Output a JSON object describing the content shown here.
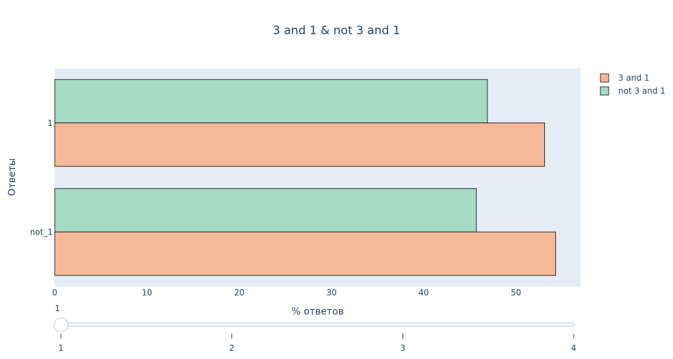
{
  "chart_data": {
    "type": "bar",
    "orientation": "horizontal",
    "title": "3 and 1 & not 3 and 1",
    "xlabel": "% ответов",
    "ylabel": "Ответы",
    "categories": [
      "1",
      "not_1"
    ],
    "series": [
      {
        "name": "3 and 1",
        "values": [
          53.1,
          54.3
        ],
        "color": "#f4b997"
      },
      {
        "name": "not 3 and 1",
        "values": [
          46.9,
          45.7
        ],
        "color": "#a5dac4"
      }
    ],
    "xlim": [
      0,
      57
    ],
    "xticks": [
      0,
      10,
      20,
      30,
      40,
      50
    ],
    "legend_position": "top-right",
    "grid": false,
    "plot_bgcolor": "#e5ecf6",
    "bar_outline": "#2a2a2a"
  },
  "slider": {
    "current_label": "1",
    "steps": [
      "1",
      "2",
      "3",
      "4"
    ],
    "active_index": 0
  }
}
